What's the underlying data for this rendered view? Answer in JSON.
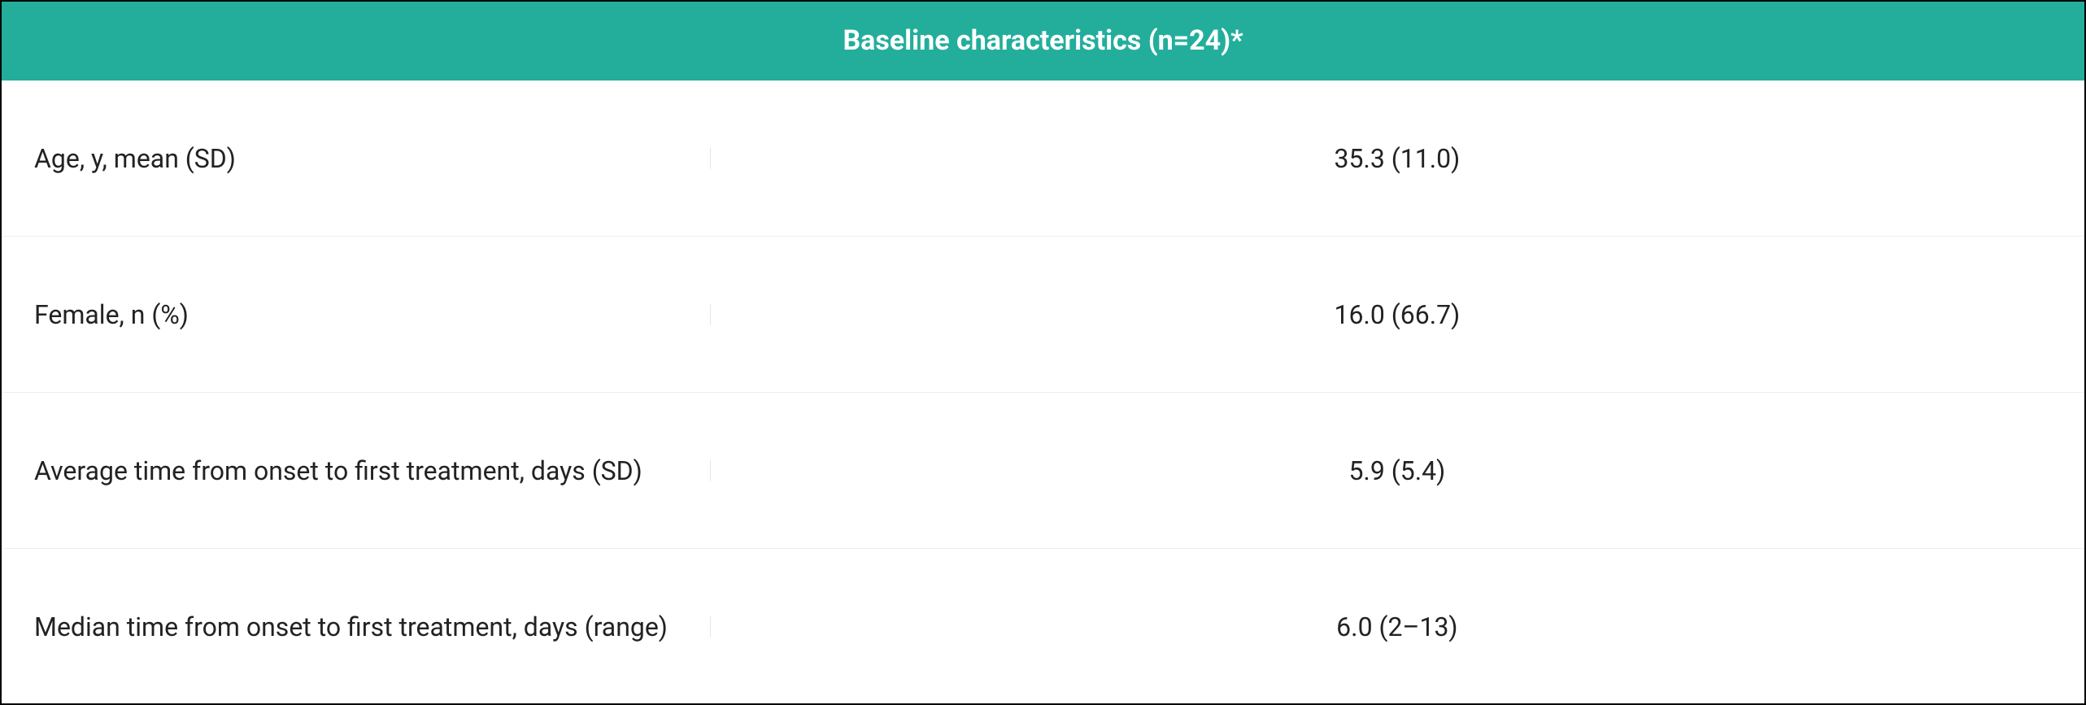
{
  "table": {
    "type": "table",
    "header": "Baseline characteristics (n=24)*",
    "header_bg": "#23ae9c",
    "header_color": "#ffffff",
    "header_fontsize": 34,
    "header_fontweight": 700,
    "row_border_color": "#eceeee",
    "cell_font_color": "#222222",
    "cell_fontsize": 32,
    "outer_border_color": "#000000",
    "background_color": "#ffffff",
    "label_col_width_pct": 34,
    "rows": [
      {
        "label": "Age, y, mean (SD)",
        "value": "35.3 (11.0)"
      },
      {
        "label": "Female, n (%)",
        "value": "16.0 (66.7)"
      },
      {
        "label": "Average time from onset to first treatment, days (SD)",
        "value": "5.9 (5.4)"
      },
      {
        "label": "Median time from onset to first treatment, days (range)",
        "value": "6.0 (2–13)"
      }
    ]
  }
}
